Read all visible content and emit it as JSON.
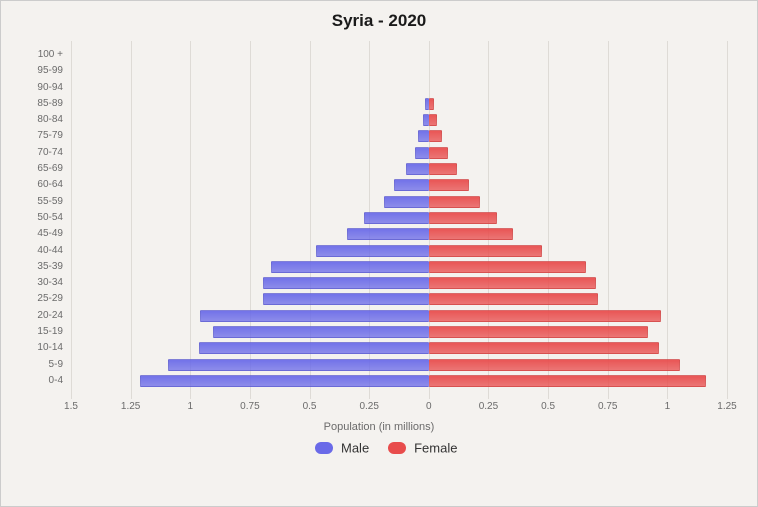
{
  "chart": {
    "type": "population-pyramid",
    "title": "Syria - 2020",
    "x_axis_label": "Population (in millions)",
    "background_color": "#f4f2ef",
    "grid_color": "#dedbd6",
    "title_fontsize": 17,
    "label_fontsize": 11,
    "tick_fontsize": 10,
    "legend_fontsize": 13,
    "x_max": 1.5,
    "x_ticks": [
      1.5,
      1.25,
      1,
      0.75,
      0.5,
      0.25,
      0,
      0.25,
      0.5,
      0.75,
      1,
      1.25
    ],
    "x_tick_labels": [
      "1.5",
      "1.25",
      "1",
      "0.75",
      "0.5",
      "0.25",
      "0",
      "0.25",
      "0.5",
      "0.75",
      "1",
      "1.25"
    ],
    "age_groups": [
      "100 +",
      "95-99",
      "90-94",
      "85-89",
      "80-84",
      "75-79",
      "70-74",
      "65-69",
      "60-64",
      "55-59",
      "50-54",
      "45-49",
      "40-44",
      "35-39",
      "30-34",
      "25-29",
      "20-24",
      "15-19",
      "10-14",
      "5-9",
      "0-4"
    ],
    "male": [
      0,
      0,
      0,
      0.015,
      0.025,
      0.045,
      0.06,
      0.095,
      0.145,
      0.19,
      0.27,
      0.345,
      0.475,
      0.66,
      0.695,
      0.695,
      0.96,
      0.905,
      0.965,
      1.095,
      1.21
    ],
    "female": [
      0,
      0,
      0,
      0.02,
      0.033,
      0.055,
      0.08,
      0.12,
      0.17,
      0.215,
      0.285,
      0.355,
      0.475,
      0.66,
      0.7,
      0.71,
      0.975,
      0.92,
      0.965,
      1.055,
      1.16
    ],
    "male_color": "#6a6ae8",
    "female_color": "#e84c4c",
    "legend": {
      "male": "Male",
      "female": "Female"
    }
  }
}
